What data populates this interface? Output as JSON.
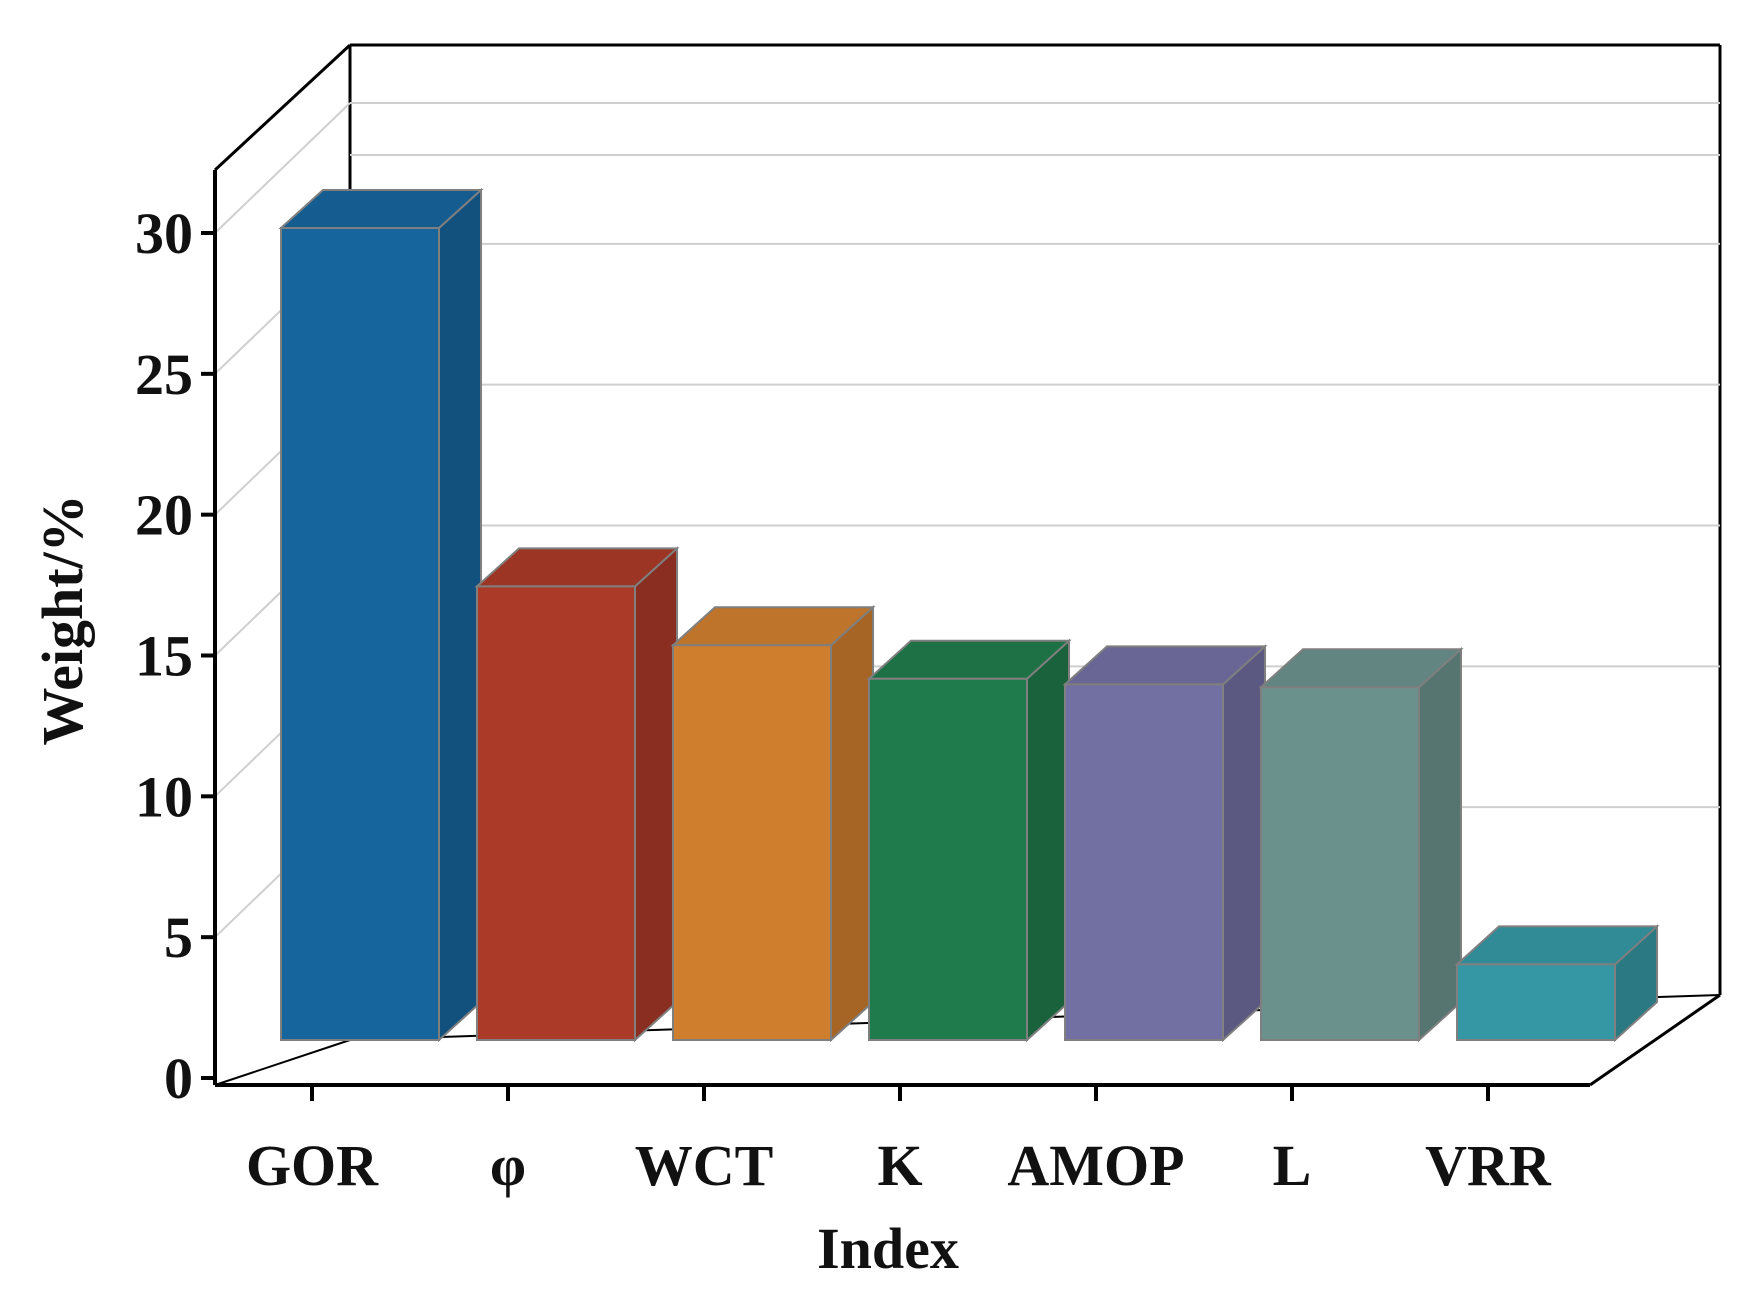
{
  "chart_data": {
    "type": "bar",
    "style": "3d",
    "title": "",
    "xlabel": "Index",
    "ylabel": "Weight/%",
    "ylim": [
      0,
      30
    ],
    "yticks": [
      "0",
      "5",
      "10",
      "15",
      "20",
      "25",
      "30"
    ],
    "categories": [
      "GOR",
      "φ",
      "WCT",
      "K",
      "AMOP",
      "L",
      "VRR"
    ],
    "values": [
      29,
      16.2,
      14.1,
      12.9,
      12.7,
      12.6,
      2.7
    ],
    "colors": [
      "#17659d",
      "#ab3a28",
      "#cf7e2e",
      "#1f7b4b",
      "#726fa2",
      "#6b918c",
      "#3597a4"
    ],
    "grid": true
  }
}
